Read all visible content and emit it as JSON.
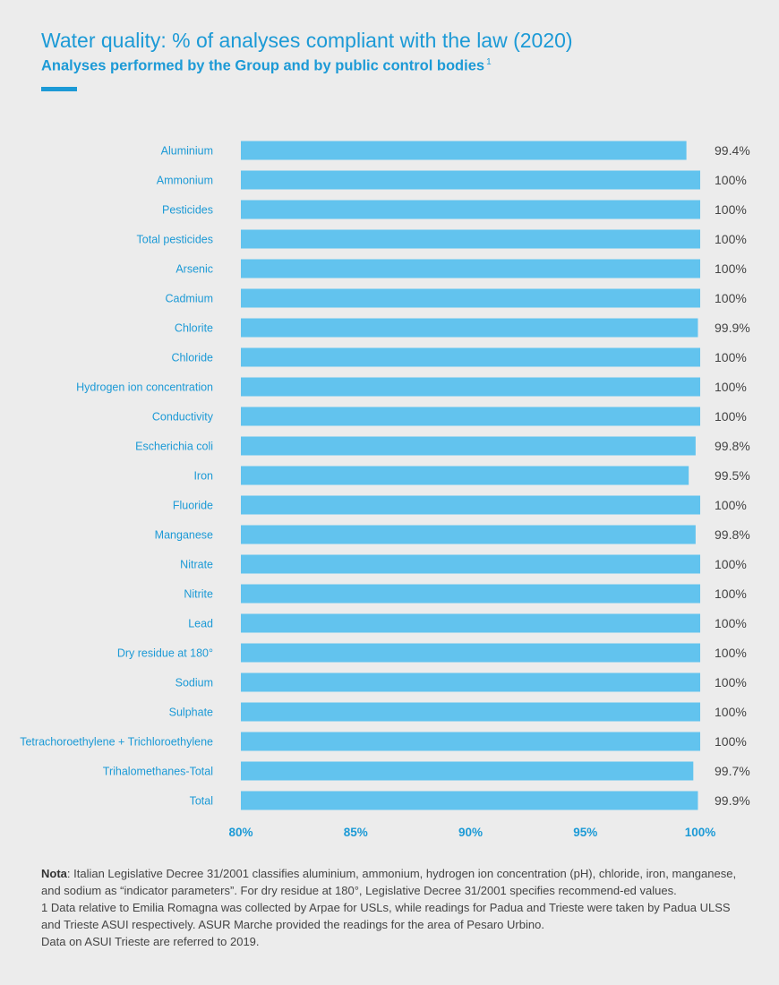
{
  "header": {
    "title": "Water quality: % of analyses compliant with the law (2020)",
    "subtitle": "Analyses performed by the Group and by public control bodies",
    "subtitle_sup": "1"
  },
  "colors": {
    "accent": "#1c9ad6",
    "bar": "#62c3ee",
    "value_text": "#444444",
    "background": "#ececec"
  },
  "chart_data": {
    "type": "bar",
    "orientation": "horizontal",
    "categories": [
      "Aluminium",
      "Ammonium",
      "Pesticides",
      "Total pesticides",
      "Arsenic",
      "Cadmium",
      "Chlorite",
      "Chloride",
      "Hydrogen ion concentration",
      "Conductivity",
      "Escherichia coli",
      "Iron",
      "Fluoride",
      "Manganese",
      "Nitrate",
      "Nitrite",
      "Lead",
      "Dry residue at 180°",
      "Sodium",
      "Sulphate",
      "Tetrachoroethylene + Trichloroethylene",
      "Trihalomethanes-Total",
      "Total"
    ],
    "values": [
      99.4,
      100,
      100,
      100,
      100,
      100,
      99.9,
      100,
      100,
      100,
      99.8,
      99.5,
      100,
      99.8,
      100,
      100,
      100,
      100,
      100,
      100,
      100,
      99.7,
      99.9
    ],
    "value_labels": [
      "99.4%",
      "100%",
      "100%",
      "100%",
      "100%",
      "100%",
      "99.9%",
      "100%",
      "100%",
      "100%",
      "99.8%",
      "99.5%",
      "100%",
      "99.8%",
      "100%",
      "100%",
      "100%",
      "100%",
      "100%",
      "100%",
      "100%",
      "99.7%",
      "99.9%"
    ],
    "x_ticks": [
      80,
      85,
      90,
      95,
      100
    ],
    "x_tick_labels": [
      "80%",
      "85%",
      "90%",
      "95%",
      "100%"
    ],
    "xlim": [
      80,
      100
    ],
    "grid": false,
    "legend": "none"
  },
  "footnotes": {
    "nota_label": "Nota",
    "nota_text": ": Italian Legislative Decree 31/2001 classifies aluminium, ammonium, hydrogen ion concentration (pH), chloride, iron, manganese, and sodium as “indicator parameters”. For dry residue at 180°, Legislative Decree 31/2001 specifies recommend-ed values.",
    "note1": "1 Data relative to Emilia Romagna was collected by Arpae for USLs, while readings for Padua and Trieste were taken by Padua ULSS and Trieste ASUI respectively. ASUR Marche provided the readings for the area of Pesaro Urbino.",
    "note2": "Data on ASUI Trieste are referred to 2019."
  }
}
